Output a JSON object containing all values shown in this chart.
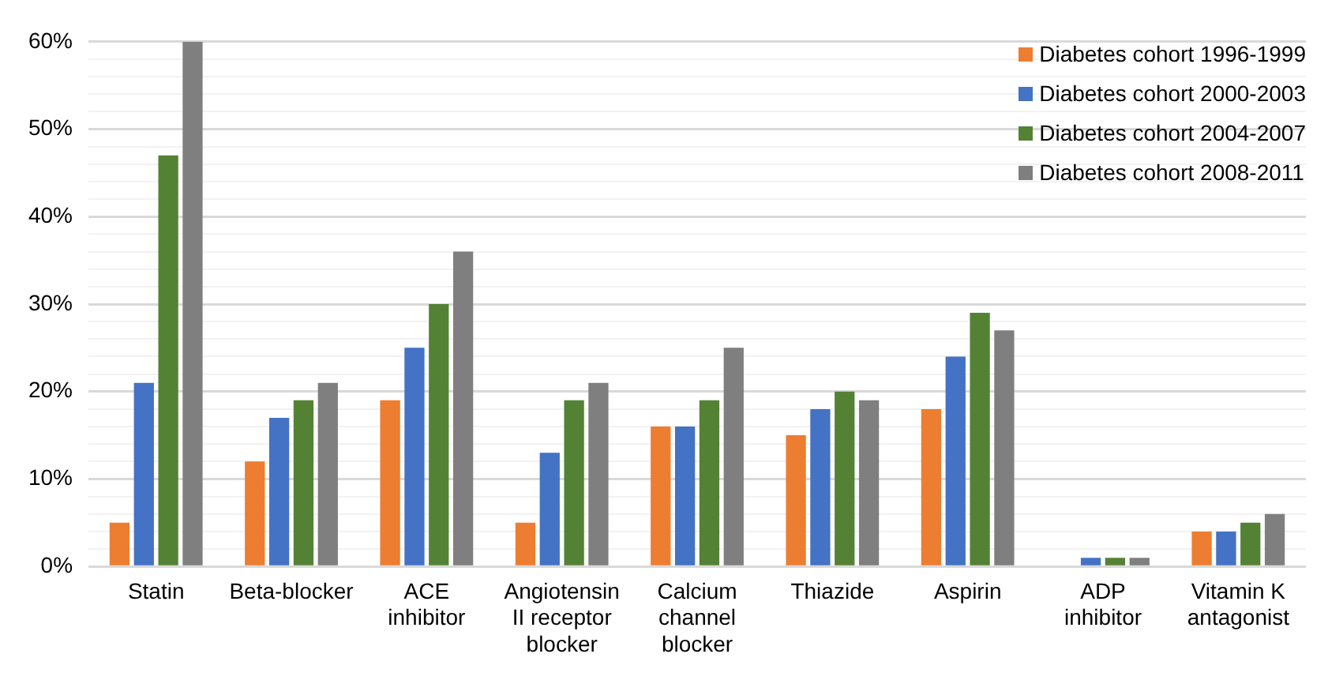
{
  "chart_data": {
    "type": "bar",
    "categories": [
      "Statin",
      "Beta-blocker",
      "ACE inhibitor",
      "Angiotensin II receptor blocker",
      "Calcium channel blocker",
      "Thiazide",
      "Aspirin",
      "ADP inhibitor",
      "Vitamin K antagonist"
    ],
    "series": [
      {
        "name": "Diabetes cohort 1996-1999",
        "color": "#ed7d31",
        "values": [
          5,
          12,
          19,
          5,
          16,
          15,
          18,
          0,
          4
        ]
      },
      {
        "name": "Diabetes cohort 2000-2003",
        "color": "#4472c4",
        "values": [
          21,
          17,
          25,
          13,
          16,
          18,
          24,
          1,
          4
        ]
      },
      {
        "name": "Diabetes cohort 2004-2007",
        "color": "#548235",
        "values": [
          47,
          19,
          30,
          19,
          19,
          20,
          29,
          1,
          5
        ]
      },
      {
        "name": "Diabetes cohort 2008-2011",
        "color": "#7f7f7f",
        "values": [
          60,
          21,
          36,
          21,
          25,
          19,
          27,
          1,
          6
        ]
      }
    ],
    "ylim": [
      0,
      60
    ],
    "yticks": [
      {
        "value": 0,
        "label": "0%"
      },
      {
        "value": 2,
        "label": null
      },
      {
        "value": 4,
        "label": null
      },
      {
        "value": 6,
        "label": null
      },
      {
        "value": 8,
        "label": null
      },
      {
        "value": 10,
        "label": "10%"
      },
      {
        "value": 12,
        "label": null
      },
      {
        "value": 14,
        "label": null
      },
      {
        "value": 16,
        "label": null
      },
      {
        "value": 18,
        "label": null
      },
      {
        "value": 20,
        "label": "20%"
      },
      {
        "value": 22,
        "label": null
      },
      {
        "value": 24,
        "label": null
      },
      {
        "value": 26,
        "label": null
      },
      {
        "value": 28,
        "label": null
      },
      {
        "value": 30,
        "label": "30%"
      },
      {
        "value": 32,
        "label": null
      },
      {
        "value": 34,
        "label": null
      },
      {
        "value": 36,
        "label": null
      },
      {
        "value": 38,
        "label": null
      },
      {
        "value": 40,
        "label": "40%"
      },
      {
        "value": 42,
        "label": null
      },
      {
        "value": 44,
        "label": null
      },
      {
        "value": 46,
        "label": null
      },
      {
        "value": 48,
        "label": null
      },
      {
        "value": 50,
        "label": "50%"
      },
      {
        "value": 52,
        "label": null
      },
      {
        "value": 54,
        "label": null
      },
      {
        "value": 56,
        "label": null
      },
      {
        "value": 58,
        "label": null
      },
      {
        "value": 60,
        "label": "60%"
      }
    ],
    "grid": "y",
    "legend": "top right"
  }
}
